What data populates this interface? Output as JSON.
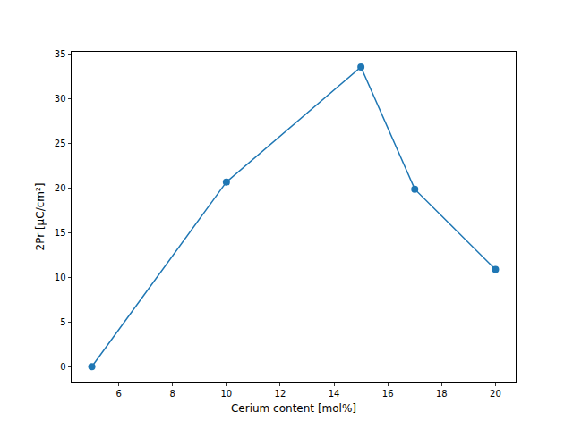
{
  "chart_data": {
    "type": "line",
    "x_label": "Cerium content [mol%]",
    "y_label": "2Pr [µC/cm²]",
    "x": [
      5,
      10,
      15,
      17,
      20
    ],
    "values": [
      0,
      20.7,
      33.6,
      19.9,
      10.9
    ],
    "color": "#1f77b4",
    "marker": "circle",
    "line_style": "solid",
    "xlim": [
      4.25,
      20.75
    ],
    "xticks": [
      6,
      8,
      10,
      12,
      14,
      16,
      18,
      20
    ],
    "ylim": [
      -1.68,
      35.3
    ],
    "yticks": [
      0,
      5,
      10,
      15,
      20,
      25,
      30,
      35
    ],
    "grid": false
  }
}
